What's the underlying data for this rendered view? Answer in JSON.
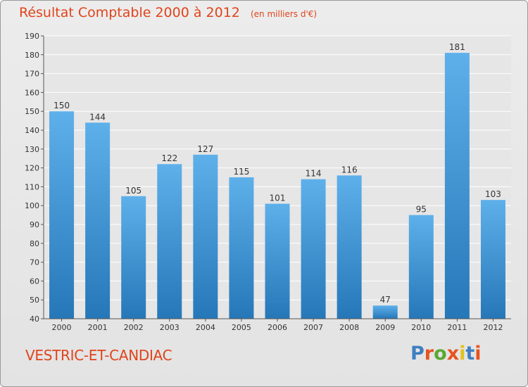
{
  "header": {
    "title": "Résultat Comptable 2000 à 2012",
    "unit": "(en milliers d'€)"
  },
  "footer": {
    "location": "VESTRIC-ET-CANDIAC",
    "logo_text": "Proxiti"
  },
  "colors": {
    "title": "#e0441b",
    "bar_top": "#5eb0ea",
    "bar_bottom": "#2677b8",
    "logo_letters": [
      "#3e7fc1",
      "#e8531f",
      "#5aa832",
      "#e8531f",
      "#e2c21d",
      "#3e7fc1",
      "#e8531f"
    ]
  },
  "chart_data": {
    "type": "bar",
    "title": "Résultat Comptable 2000 à 2012",
    "subtitle": "(en milliers d'€)",
    "categories": [
      "2000",
      "2001",
      "2002",
      "2003",
      "2004",
      "2005",
      "2006",
      "2007",
      "2008",
      "2009",
      "2010",
      "2011",
      "2012"
    ],
    "values": [
      150,
      144,
      105,
      122,
      127,
      115,
      101,
      114,
      116,
      47,
      95,
      181,
      103
    ],
    "ylim": [
      40,
      190
    ],
    "yticks": [
      40,
      50,
      60,
      70,
      80,
      90,
      100,
      110,
      120,
      130,
      140,
      150,
      160,
      170,
      180,
      190
    ],
    "grid": true
  }
}
